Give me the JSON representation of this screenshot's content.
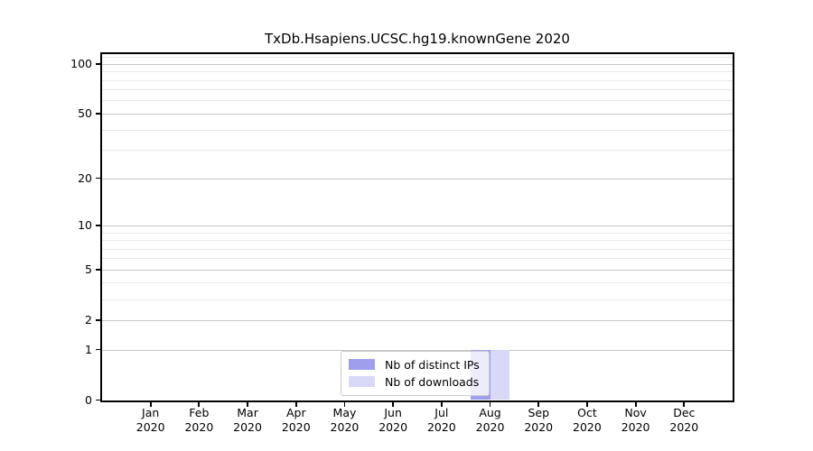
{
  "figure": {
    "title": "TxDb.Hsapiens.UCSC.hg19.knownGene 2020",
    "background_color": "#ffffff"
  },
  "chart_data": {
    "type": "bar",
    "title": "TxDb.Hsapiens.UCSC.hg19.knownGene 2020",
    "categories": [
      "Jan",
      "Feb",
      "Mar",
      "Apr",
      "May",
      "Jun",
      "Jul",
      "Aug",
      "Sep",
      "Oct",
      "Nov",
      "Dec"
    ],
    "year": "2020",
    "series": [
      {
        "name": "Nb of distinct IPs",
        "color": "#9e9eec",
        "values": [
          0,
          0,
          0,
          0,
          0,
          0,
          0,
          1,
          0,
          0,
          0,
          0
        ]
      },
      {
        "name": "Nb of downloads",
        "color": "#d8d8f7",
        "values": [
          0,
          0,
          0,
          0,
          0,
          0,
          0,
          1,
          0,
          0,
          0,
          0
        ]
      }
    ],
    "xlabel": "",
    "ylabel": "",
    "yscale": "log1p",
    "ylim": [
      0,
      114
    ],
    "yticks": [
      0,
      1,
      2,
      5,
      10,
      20,
      50,
      100
    ],
    "yticks_minor": [
      3,
      4,
      6,
      7,
      8,
      9,
      30,
      40,
      60,
      70,
      80,
      90,
      110
    ],
    "grid": true,
    "legend_position": "lower center"
  },
  "colors": {
    "major_grid": "#c6c6c6",
    "minor_grid": "#e9e9e9",
    "axis": "#000000",
    "text": "#000000",
    "legend_border": "#cccccc",
    "legend_background": "rgba(255,255,255,0.8)"
  }
}
